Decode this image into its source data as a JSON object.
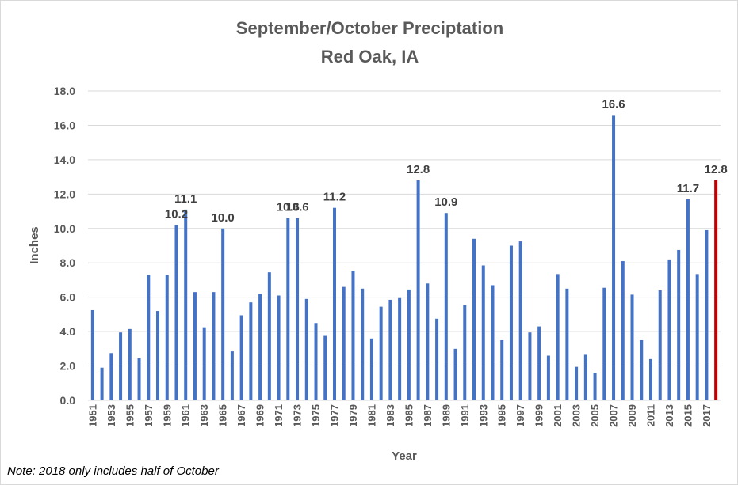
{
  "chart_data": {
    "type": "bar",
    "title": "September/October Preciptation",
    "subtitle": "Red Oak, IA",
    "xlabel": "Year",
    "ylabel": "Inches",
    "ylim": [
      0,
      18
    ],
    "yticks": [
      "0.0",
      "2.0",
      "4.0",
      "6.0",
      "8.0",
      "10.0",
      "12.0",
      "14.0",
      "16.0",
      "18.0"
    ],
    "grid": true,
    "legend": "none",
    "colors": {
      "bar": "#4472c4",
      "highlight": "#c00000",
      "grid": "#d9d9d9",
      "text": "#595959"
    },
    "highlight_category": "2018",
    "x_tick_labels": [
      "1951",
      "1953",
      "1955",
      "1957",
      "1959",
      "1961",
      "1963",
      "1965",
      "1967",
      "1969",
      "1971",
      "1973",
      "1975",
      "1977",
      "1979",
      "1981",
      "1983",
      "1985",
      "1987",
      "1989",
      "1991",
      "1993",
      "1995",
      "1997",
      "1999",
      "2001",
      "2003",
      "2005",
      "2007",
      "2009",
      "2011",
      "2013",
      "2015",
      "2017"
    ],
    "categories": [
      "1951",
      "1952",
      "1953",
      "1954",
      "1955",
      "1956",
      "1957",
      "1958",
      "1959",
      "1960",
      "1961",
      "1962",
      "1963",
      "1964",
      "1965",
      "1966",
      "1967",
      "1968",
      "1969",
      "1970",
      "1971",
      "1972",
      "1973",
      "1974",
      "1975",
      "1976",
      "1977",
      "1978",
      "1979",
      "1980",
      "1981",
      "1982",
      "1983",
      "1984",
      "1985",
      "1986",
      "1987",
      "1988",
      "1989",
      "1990",
      "1991",
      "1992",
      "1993",
      "1994",
      "1995",
      "1996",
      "1997",
      "1998",
      "1999",
      "2000",
      "2001",
      "2002",
      "2003",
      "2004",
      "2005",
      "2006",
      "2007",
      "2008",
      "2009",
      "2010",
      "2011",
      "2012",
      "2013",
      "2014",
      "2015",
      "2016",
      "2017",
      "2018"
    ],
    "values": [
      5.25,
      1.9,
      2.75,
      3.95,
      4.15,
      2.45,
      7.3,
      5.2,
      7.3,
      10.2,
      11.1,
      6.3,
      4.25,
      6.3,
      10.0,
      2.85,
      4.95,
      5.7,
      6.2,
      7.45,
      6.1,
      10.6,
      10.6,
      5.9,
      4.5,
      3.75,
      11.2,
      6.6,
      7.55,
      6.5,
      3.6,
      5.45,
      5.85,
      5.95,
      6.45,
      12.8,
      6.8,
      4.75,
      10.9,
      3.0,
      5.55,
      9.4,
      7.85,
      6.7,
      3.5,
      9.0,
      9.25,
      3.95,
      4.3,
      2.6,
      7.35,
      6.5,
      1.95,
      2.65,
      1.6,
      6.55,
      16.6,
      8.1,
      6.15,
      3.5,
      2.4,
      6.4,
      8.2,
      8.75,
      11.7,
      7.35,
      9.9,
      12.8
    ],
    "data_labels": [
      {
        "category": "1960",
        "text": "10.2"
      },
      {
        "category": "1961",
        "text": "11.1"
      },
      {
        "category": "1965",
        "text": "10.0"
      },
      {
        "category": "1972",
        "text": "10.6"
      },
      {
        "category": "1973",
        "text": "10.6"
      },
      {
        "category": "1977",
        "text": "11.2"
      },
      {
        "category": "1986",
        "text": "12.8"
      },
      {
        "category": "1989",
        "text": "10.9"
      },
      {
        "category": "2007",
        "text": "16.6"
      },
      {
        "category": "2015",
        "text": "11.7"
      },
      {
        "category": "2018",
        "text": "12.8"
      }
    ],
    "annotation": "Note: 2018 only includes half of October"
  }
}
